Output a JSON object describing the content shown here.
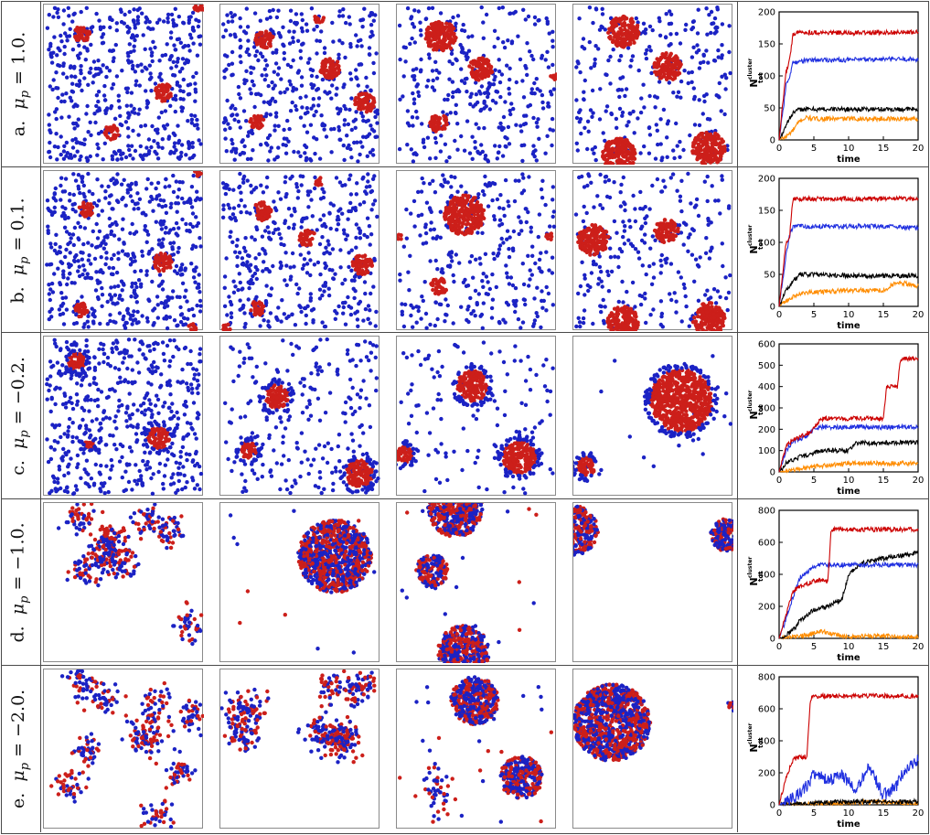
{
  "rows": [
    {
      "letter": "a.",
      "mu_label": "μp = 1.0.",
      "mu_sym": "μ",
      "mu_sub": "p",
      "mu_rest": " = 1.0.",
      "snapshot_style": "separated",
      "chart": {
        "type": "line",
        "xlabel": "time",
        "ylabel_main": "N",
        "ylabel_sub": "tot",
        "ylabel_sup": "cluster",
        "xlim": [
          0,
          20
        ],
        "ylim": [
          0,
          200
        ],
        "xticks": [
          "0",
          "5",
          "10",
          "15",
          "20"
        ],
        "yticks": [
          "0",
          "50",
          "100",
          "150",
          "200"
        ]
      }
    },
    {
      "letter": "b.",
      "mu_label": "μp = 0.1.",
      "mu_sym": "μ",
      "mu_sub": "p",
      "mu_rest": " = 0.1.",
      "snapshot_style": "separated",
      "chart": {
        "type": "line",
        "xlabel": "time",
        "ylabel_main": "N",
        "ylabel_sub": "tot",
        "ylabel_sup": "cluster",
        "xlim": [
          0,
          20
        ],
        "ylim": [
          0,
          200
        ],
        "xticks": [
          "0",
          "5",
          "10",
          "15",
          "20"
        ],
        "yticks": [
          "0",
          "50",
          "100",
          "150",
          "200"
        ]
      }
    },
    {
      "letter": "c.",
      "mu_label": "μp = −0.2.",
      "mu_sym": "μ",
      "mu_sub": "p",
      "mu_rest": " = −0.2.",
      "snapshot_style": "coated",
      "chart": {
        "type": "line",
        "xlabel": "time",
        "ylabel_main": "N",
        "ylabel_sub": "tot",
        "ylabel_sup": "cluster",
        "xlim": [
          0,
          20
        ],
        "ylim": [
          0,
          600
        ],
        "xticks": [
          "0",
          "5",
          "10",
          "15",
          "20"
        ],
        "yticks": [
          "0",
          "100",
          "200",
          "300",
          "400",
          "500",
          "600"
        ]
      }
    },
    {
      "letter": "d.",
      "mu_label": "μp = −1.0.",
      "mu_sym": "μ",
      "mu_sub": "p",
      "mu_rest": " = −1.0.",
      "snapshot_style": "mixed",
      "chart": {
        "type": "line",
        "xlabel": "time",
        "ylabel_main": "N",
        "ylabel_sub": "tot",
        "ylabel_sup": "cluster",
        "xlim": [
          0,
          20
        ],
        "ylim": [
          0,
          800
        ],
        "xticks": [
          "0",
          "5",
          "10",
          "15",
          "20"
        ],
        "yticks": [
          "0",
          "200",
          "400",
          "600",
          "800"
        ]
      }
    },
    {
      "letter": "e.",
      "mu_label": "μp = −2.0.",
      "mu_sym": "μ",
      "mu_sub": "p",
      "mu_rest": " = −2.0.",
      "snapshot_style": "mixed",
      "chart": {
        "type": "line",
        "xlabel": "time",
        "ylabel_main": "N",
        "ylabel_sub": "tot",
        "ylabel_sup": "cluster",
        "xlim": [
          0,
          20
        ],
        "ylim": [
          0,
          800
        ],
        "xticks": [
          "0",
          "5",
          "10",
          "15",
          "20"
        ],
        "yticks": [
          "0",
          "200",
          "400",
          "600",
          "800"
        ]
      }
    }
  ],
  "colors": {
    "red_particle": "#cc1f1a",
    "blue_particle": "#1b22c4",
    "series_red": "#cc0000",
    "series_blue": "#1f2fe0",
    "series_black": "#000000",
    "series_orange": "#ff8c00"
  },
  "chart_data": [
    {
      "type": "line",
      "xlabel": "time",
      "ylabel": "N_tot^cluster",
      "xlim": [
        0,
        20
      ],
      "ylim": [
        0,
        200
      ],
      "series": [
        {
          "color": "red",
          "x": [
            0,
            0.5,
            1,
            1.5,
            2,
            3,
            5,
            10,
            15,
            20
          ],
          "y": [
            0,
            55,
            105,
            125,
            165,
            168,
            168,
            167,
            168,
            168
          ]
        },
        {
          "color": "blue",
          "x": [
            0,
            0.5,
            1,
            1.5,
            2,
            3,
            5,
            10,
            15,
            20
          ],
          "y": [
            0,
            40,
            85,
            100,
            120,
            123,
            125,
            125,
            126,
            126
          ]
        },
        {
          "color": "black",
          "x": [
            0,
            0.5,
            1,
            2,
            3,
            5,
            10,
            15,
            20
          ],
          "y": [
            0,
            10,
            25,
            42,
            48,
            48,
            48,
            48,
            48
          ]
        },
        {
          "color": "orange",
          "x": [
            0,
            1,
            2,
            3,
            4,
            5,
            10,
            15,
            20
          ],
          "y": [
            0,
            5,
            15,
            30,
            35,
            33,
            33,
            33,
            33
          ]
        }
      ]
    },
    {
      "type": "line",
      "xlabel": "time",
      "ylabel": "N_tot^cluster",
      "xlim": [
        0,
        20
      ],
      "ylim": [
        0,
        200
      ],
      "series": [
        {
          "color": "red",
          "x": [
            0,
            0.5,
            1,
            1.5,
            2,
            5,
            10,
            15,
            20
          ],
          "y": [
            0,
            50,
            100,
            110,
            168,
            168,
            168,
            168,
            168
          ]
        },
        {
          "color": "blue",
          "x": [
            0,
            0.5,
            1,
            1.5,
            2,
            5,
            10,
            15,
            20
          ],
          "y": [
            0,
            40,
            80,
            110,
            125,
            125,
            125,
            125,
            122
          ]
        },
        {
          "color": "black",
          "x": [
            0,
            1,
            2,
            3,
            5,
            10,
            15,
            20
          ],
          "y": [
            0,
            25,
            40,
            50,
            50,
            48,
            48,
            48
          ]
        },
        {
          "color": "orange",
          "x": [
            0,
            2,
            4,
            5,
            10,
            15,
            17,
            20
          ],
          "y": [
            0,
            15,
            22,
            22,
            25,
            25,
            38,
            32
          ]
        }
      ]
    },
    {
      "type": "line",
      "xlabel": "time",
      "ylabel": "N_tot^cluster",
      "xlim": [
        0,
        20
      ],
      "ylim": [
        0,
        600
      ],
      "series": [
        {
          "color": "red",
          "x": [
            0,
            1,
            2,
            4,
            5,
            6,
            10,
            15,
            15.5,
            17,
            17.5,
            20
          ],
          "y": [
            0,
            120,
            150,
            180,
            200,
            250,
            250,
            250,
            400,
            400,
            530,
            530
          ]
        },
        {
          "color": "blue",
          "x": [
            0,
            1,
            2,
            4,
            5,
            6,
            10,
            15,
            20
          ],
          "y": [
            0,
            100,
            140,
            170,
            200,
            210,
            210,
            210,
            210
          ]
        },
        {
          "color": "black",
          "x": [
            0,
            1,
            3,
            5,
            6,
            10,
            11,
            15,
            20
          ],
          "y": [
            0,
            40,
            70,
            90,
            100,
            100,
            135,
            135,
            140
          ]
        },
        {
          "color": "orange",
          "x": [
            0,
            2,
            5,
            10,
            15,
            20
          ],
          "y": [
            0,
            10,
            25,
            40,
            40,
            40
          ]
        }
      ]
    },
    {
      "type": "line",
      "xlabel": "time",
      "ylabel": "N_tot^cluster",
      "xlim": [
        0,
        20
      ],
      "ylim": [
        0,
        800
      ],
      "series": [
        {
          "color": "red",
          "x": [
            0,
            1,
            2,
            3,
            5,
            5.5,
            7,
            7.5,
            10,
            15,
            20
          ],
          "y": [
            0,
            150,
            300,
            320,
            360,
            360,
            360,
            680,
            680,
            680,
            680
          ]
        },
        {
          "color": "blue",
          "x": [
            0,
            1,
            2,
            3,
            5,
            6,
            10,
            15,
            20
          ],
          "y": [
            0,
            120,
            260,
            380,
            450,
            460,
            460,
            460,
            460
          ]
        },
        {
          "color": "black",
          "x": [
            0,
            1,
            2,
            3,
            5,
            7,
            9,
            10,
            12,
            15,
            18,
            20
          ],
          "y": [
            0,
            20,
            50,
            110,
            180,
            200,
            240,
            400,
            470,
            500,
            520,
            540
          ]
        },
        {
          "color": "orange",
          "x": [
            0,
            2,
            4,
            6,
            8,
            10,
            15,
            20
          ],
          "y": [
            0,
            10,
            20,
            45,
            25,
            10,
            15,
            5
          ]
        }
      ]
    },
    {
      "type": "line",
      "xlabel": "time",
      "ylabel": "N_tot^cluster",
      "xlim": [
        0,
        20
      ],
      "ylim": [
        0,
        800
      ],
      "series": [
        {
          "color": "red",
          "x": [
            0,
            1,
            2,
            3,
            4,
            4.5,
            5,
            10,
            15,
            20
          ],
          "y": [
            0,
            170,
            280,
            300,
            300,
            660,
            680,
            680,
            680,
            680
          ]
        },
        {
          "color": "blue",
          "x": [
            0,
            2,
            4,
            5,
            7,
            9,
            11,
            13,
            15,
            17,
            18,
            20
          ],
          "y": [
            0,
            40,
            120,
            200,
            150,
            180,
            100,
            230,
            60,
            120,
            220,
            280
          ]
        },
        {
          "color": "black",
          "x": [
            0,
            5,
            10,
            15,
            20
          ],
          "y": [
            0,
            10,
            20,
            20,
            20
          ]
        },
        {
          "color": "orange",
          "x": [
            0,
            5,
            10,
            15,
            20
          ],
          "y": [
            0,
            5,
            10,
            20,
            5
          ]
        }
      ]
    }
  ]
}
